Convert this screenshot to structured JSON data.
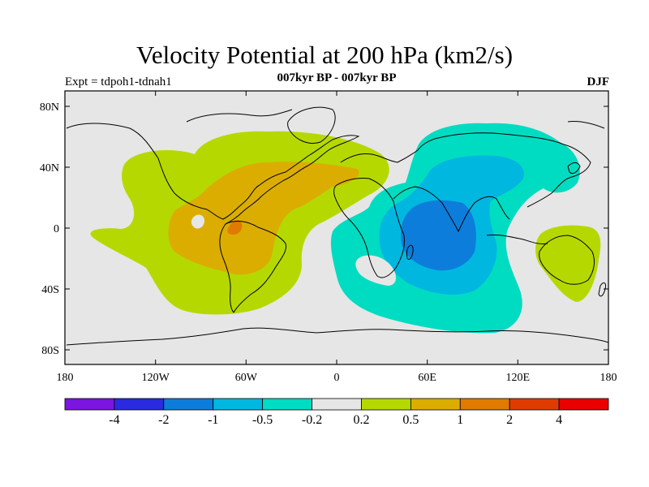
{
  "title": "Velocity Potential at 200 hPa (km2/s)",
  "subtitle": "007kyr BP - 007kyr BP",
  "left_label": "Expt = tdpoh1-tdnah1",
  "right_label": "DJF",
  "axes": {
    "y_ticks": [
      "80N",
      "40N",
      "0",
      "40S",
      "80S"
    ],
    "x_ticks": [
      "180",
      "120W",
      "60W",
      "0",
      "60E",
      "120E",
      "180"
    ]
  },
  "colorbar": {
    "colors": [
      "#7b16e0",
      "#2a2ae0",
      "#0d7ddb",
      "#00b7e0",
      "#00dcc1",
      "#e6e6e6",
      "#b5d900",
      "#dbad00",
      "#e07a00",
      "#e03c00",
      "#ea0000"
    ],
    "labels": [
      "-4",
      "-2",
      "-1",
      "-0.5",
      "-0.2",
      "0.2",
      "0.5",
      "1",
      "2",
      "4"
    ]
  },
  "map": {
    "background_color": "#e6e6e6",
    "coastline_color": "#000000"
  }
}
